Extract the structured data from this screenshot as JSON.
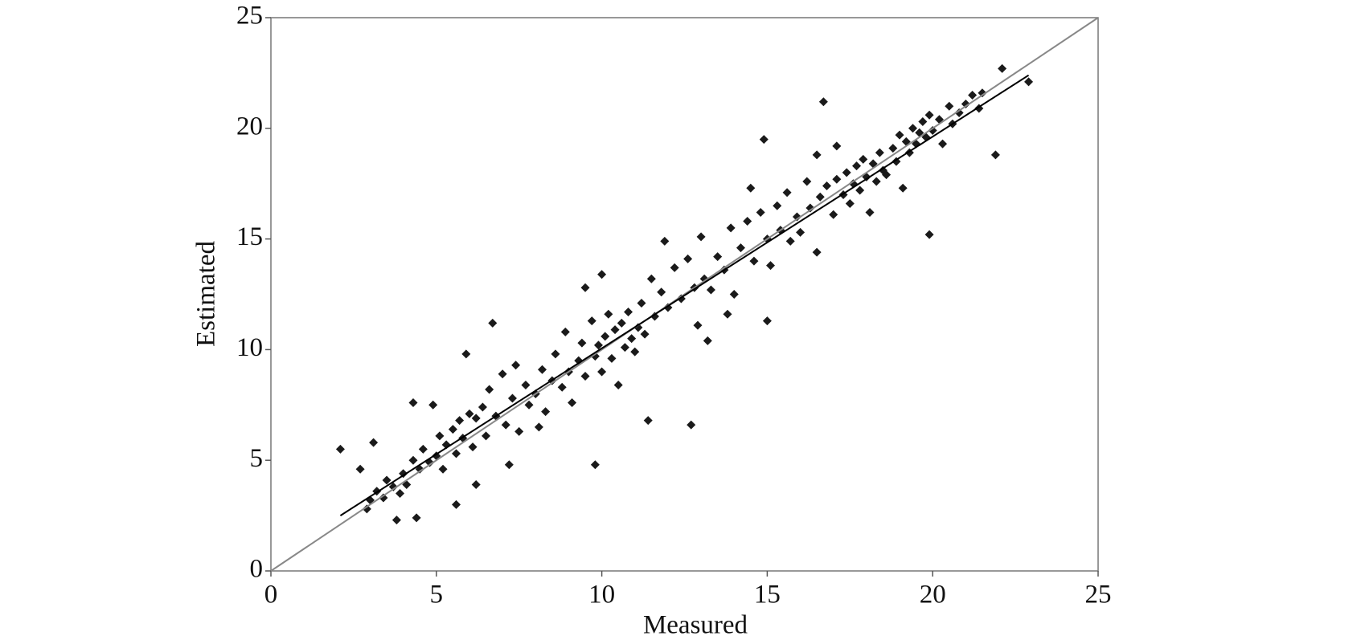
{
  "chart_data": {
    "type": "scatter",
    "xlabel": "Measured",
    "ylabel": "Estimated",
    "xlim": [
      0,
      25
    ],
    "ylim": [
      0,
      25
    ],
    "xticks": [
      0,
      5,
      10,
      15,
      20,
      25
    ],
    "yticks": [
      0,
      5,
      10,
      15,
      20,
      25
    ],
    "series": [
      {
        "type": "scatter",
        "color": "#1a1a1a",
        "x": [
          2.1,
          2.7,
          3.1,
          3.8,
          4.4,
          5.6,
          6.7,
          5.9,
          9.8,
          11.4,
          12.7,
          14.9,
          16.7,
          19.9,
          21.9,
          22.1,
          22.9,
          15.0,
          13.2,
          11.9,
          10.0,
          9.5,
          17.1,
          16.5,
          12.9,
          13.8,
          8.1,
          6.2,
          7.2,
          4.9,
          4.3,
          2.9,
          3.0,
          3.2,
          3.4,
          3.5,
          3.7,
          3.9,
          4.0,
          4.1,
          4.3,
          4.5,
          4.6,
          4.8,
          5.0,
          5.1,
          5.2,
          5.3,
          5.5,
          5.6,
          5.7,
          5.8,
          6.0,
          6.1,
          6.2,
          6.4,
          6.5,
          6.6,
          6.8,
          7.0,
          7.1,
          7.3,
          7.4,
          7.5,
          7.7,
          7.8,
          8.0,
          8.2,
          8.3,
          8.5,
          8.6,
          8.8,
          8.9,
          9.0,
          9.1,
          9.3,
          9.4,
          9.5,
          9.7,
          9.8,
          9.9,
          10.0,
          10.1,
          10.2,
          10.3,
          10.4,
          10.5,
          10.6,
          10.7,
          10.8,
          10.9,
          11.0,
          11.1,
          11.2,
          11.3,
          11.5,
          11.6,
          11.8,
          12.0,
          12.2,
          12.4,
          12.6,
          12.8,
          13.0,
          13.1,
          13.3,
          13.5,
          13.7,
          13.9,
          14.0,
          14.2,
          14.4,
          14.5,
          14.6,
          14.8,
          15.0,
          15.1,
          15.3,
          15.4,
          15.6,
          15.7,
          15.9,
          16.0,
          16.2,
          16.3,
          16.5,
          16.6,
          16.8,
          17.0,
          17.1,
          17.3,
          17.4,
          17.5,
          17.6,
          17.7,
          17.8,
          17.9,
          18.0,
          18.1,
          18.2,
          18.3,
          18.4,
          18.5,
          18.6,
          18.8,
          18.9,
          19.0,
          19.1,
          19.2,
          19.3,
          19.4,
          19.5,
          19.6,
          19.7,
          19.8,
          19.9,
          20.0,
          20.2,
          20.3,
          20.5,
          20.6,
          20.8,
          21.0,
          21.2,
          21.4,
          21.5
        ],
        "y": [
          5.5,
          4.6,
          5.8,
          2.3,
          2.4,
          3.0,
          11.2,
          9.8,
          4.8,
          6.8,
          6.6,
          19.5,
          21.2,
          15.2,
          18.8,
          22.7,
          22.1,
          11.3,
          10.4,
          14.9,
          13.4,
          12.8,
          19.2,
          18.8,
          11.1,
          11.6,
          6.5,
          3.9,
          4.8,
          7.5,
          7.6,
          2.8,
          3.2,
          3.6,
          3.3,
          4.1,
          3.8,
          3.5,
          4.4,
          3.9,
          5.0,
          4.6,
          5.5,
          4.9,
          5.2,
          6.1,
          4.6,
          5.7,
          6.4,
          5.3,
          6.8,
          6.0,
          7.1,
          5.6,
          6.9,
          7.4,
          6.1,
          8.2,
          7.0,
          8.9,
          6.6,
          7.8,
          9.3,
          6.3,
          8.4,
          7.5,
          8.0,
          9.1,
          7.2,
          8.6,
          9.8,
          8.3,
          10.8,
          9.0,
          7.6,
          9.5,
          10.3,
          8.8,
          11.3,
          9.7,
          10.2,
          9.0,
          10.6,
          11.6,
          9.6,
          10.9,
          8.4,
          11.2,
          10.1,
          11.7,
          10.5,
          9.9,
          11.0,
          12.1,
          10.7,
          13.2,
          11.5,
          12.6,
          11.9,
          13.7,
          12.3,
          14.1,
          12.8,
          15.1,
          13.2,
          12.7,
          14.2,
          13.6,
          15.5,
          12.5,
          14.6,
          15.8,
          17.3,
          14.0,
          16.2,
          15.0,
          13.8,
          16.5,
          15.4,
          17.1,
          14.9,
          16.0,
          15.3,
          17.6,
          16.4,
          14.4,
          16.9,
          17.4,
          16.1,
          17.7,
          17.0,
          18.0,
          16.6,
          17.5,
          18.3,
          17.2,
          18.6,
          17.8,
          16.2,
          18.4,
          17.6,
          18.9,
          18.1,
          17.9,
          19.1,
          18.5,
          19.7,
          17.3,
          19.4,
          18.9,
          20.0,
          19.3,
          19.8,
          20.3,
          19.6,
          20.6,
          19.9,
          20.4,
          19.3,
          21.0,
          20.2,
          20.7,
          21.1,
          21.5,
          20.9,
          21.6
        ]
      },
      {
        "type": "line",
        "color": "#888888",
        "x": [
          0,
          25
        ],
        "y": [
          0,
          25
        ]
      },
      {
        "type": "line",
        "color": "#000000",
        "x": [
          2.1,
          22.9
        ],
        "y": [
          2.5,
          22.4
        ]
      }
    ]
  }
}
